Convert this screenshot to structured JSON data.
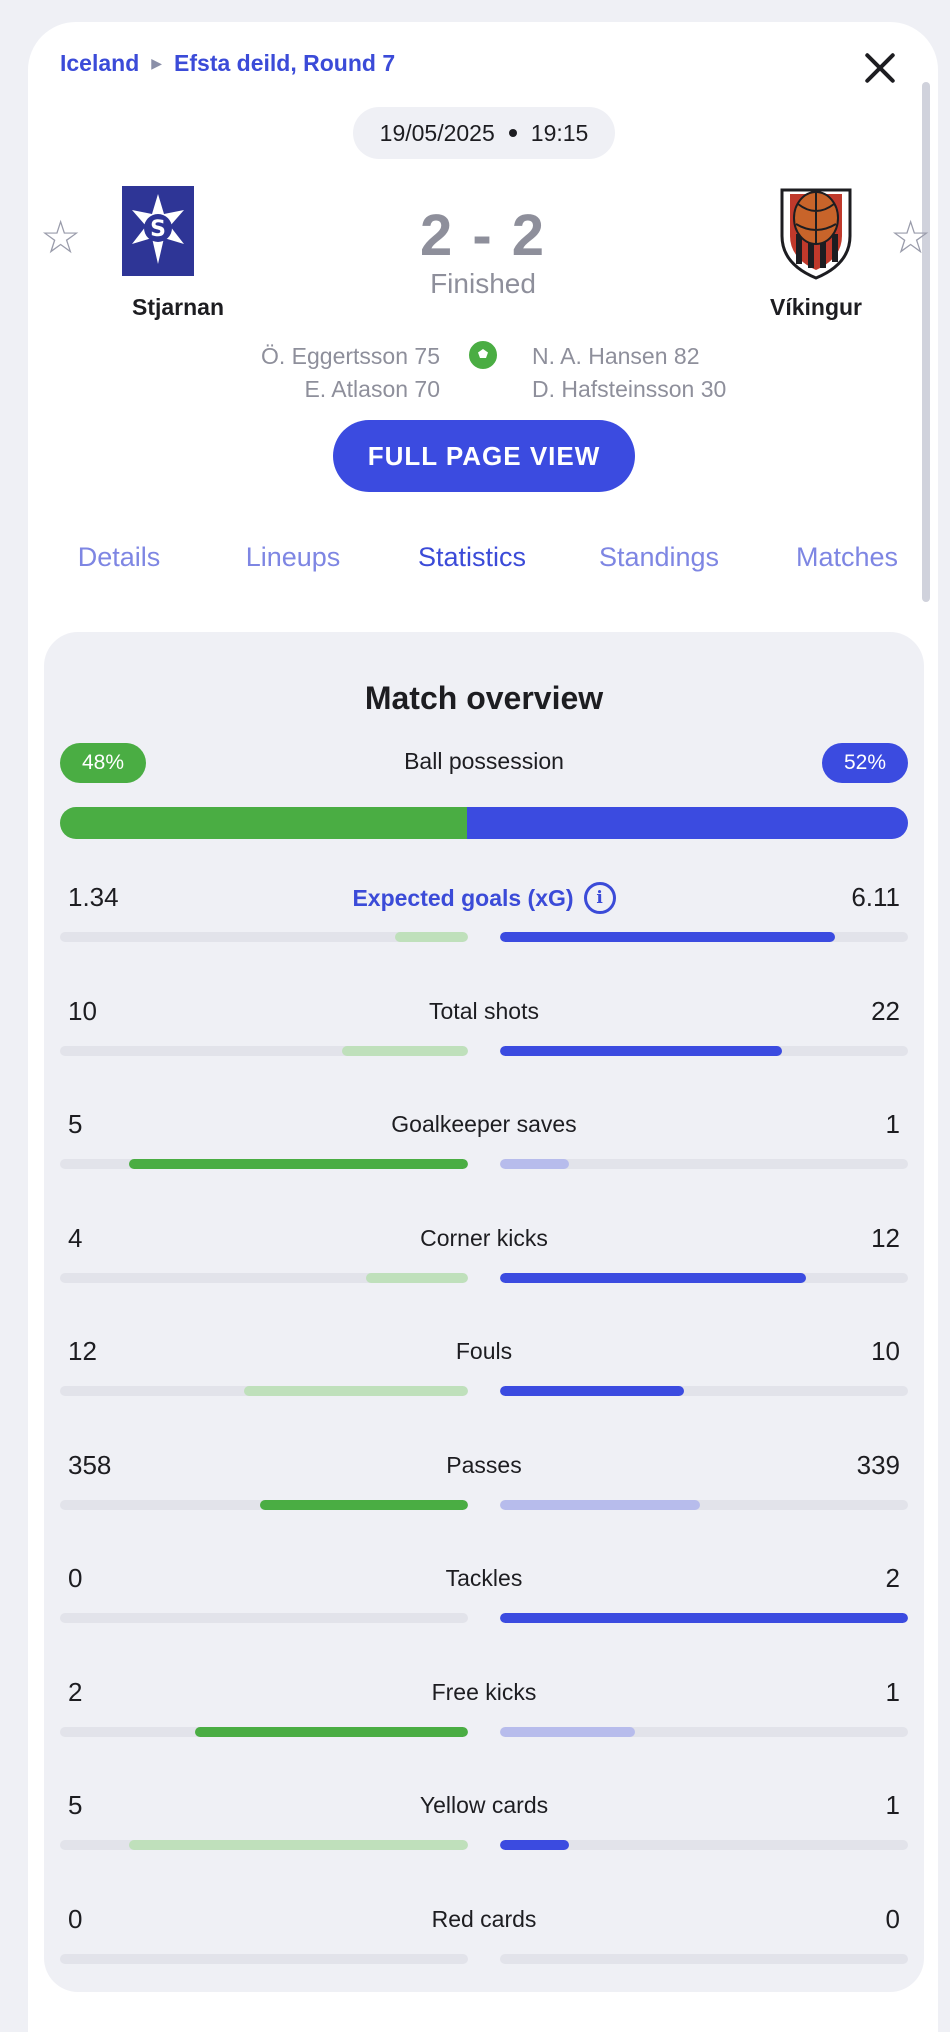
{
  "breadcrumb": {
    "country": "Iceland",
    "competition": "Efsta deild, Round 7"
  },
  "match": {
    "date": "19/05/2025",
    "time": "19:15",
    "score": "2 - 2",
    "status": "Finished"
  },
  "home": {
    "name": "Stjarnan",
    "scorers": [
      "Ö. Eggertsson 75",
      "E. Atlason 70"
    ]
  },
  "away": {
    "name": "Víkingur",
    "scorers": [
      "N. A. Hansen 82",
      "D. Hafsteinsson 30"
    ]
  },
  "full_page_button": "FULL PAGE VIEW",
  "tabs": [
    {
      "label": "Details"
    },
    {
      "label": "Lineups"
    },
    {
      "label": "Statistics"
    },
    {
      "label": "Standings"
    },
    {
      "label": "Matches"
    }
  ],
  "active_tab": "Statistics",
  "stats": {
    "title": "Match overview",
    "possession": {
      "label": "Ball possession",
      "home": "48%",
      "away": "52%",
      "home_fraction": 0.48
    },
    "rows": [
      {
        "label": "Expected goals (xG)",
        "home": "1.34",
        "away": "6.11",
        "home_fill": 0.18,
        "away_fill": 0.82,
        "home_strong": false,
        "away_strong": true,
        "link": true
      },
      {
        "label": "Total shots",
        "home": "10",
        "away": "22",
        "home_fill": 0.31,
        "away_fill": 0.69,
        "home_strong": false,
        "away_strong": true
      },
      {
        "label": "Goalkeeper saves",
        "home": "5",
        "away": "1",
        "home_fill": 0.83,
        "away_fill": 0.17,
        "home_strong": true,
        "away_strong": false
      },
      {
        "label": "Corner kicks",
        "home": "4",
        "away": "12",
        "home_fill": 0.25,
        "away_fill": 0.75,
        "home_strong": false,
        "away_strong": true
      },
      {
        "label": "Fouls",
        "home": "12",
        "away": "10",
        "home_fill": 0.55,
        "away_fill": 0.45,
        "home_strong": false,
        "away_strong": true
      },
      {
        "label": "Passes",
        "home": "358",
        "away": "339",
        "home_fill": 0.51,
        "away_fill": 0.49,
        "home_strong": true,
        "away_strong": false
      },
      {
        "label": "Tackles",
        "home": "0",
        "away": "2",
        "home_fill": 0.0,
        "away_fill": 1.0,
        "home_strong": false,
        "away_strong": true
      },
      {
        "label": "Free kicks",
        "home": "2",
        "away": "1",
        "home_fill": 0.67,
        "away_fill": 0.33,
        "home_strong": true,
        "away_strong": false
      },
      {
        "label": "Yellow cards",
        "home": "5",
        "away": "1",
        "home_fill": 0.83,
        "away_fill": 0.17,
        "home_strong": false,
        "away_strong": true
      },
      {
        "label": "Red cards",
        "home": "0",
        "away": "0",
        "home_fill": 0.0,
        "away_fill": 0.0,
        "home_strong": false,
        "away_strong": false
      }
    ]
  },
  "icons": {
    "favorite": "star-outline-icon",
    "close": "close-icon",
    "goal": "soccer-ball-icon",
    "info": "info-icon"
  },
  "colors": {
    "accent": "#3b4be0",
    "home": "#4aad43",
    "away": "#3b4be0",
    "muted_text": "#8e8f9b"
  }
}
